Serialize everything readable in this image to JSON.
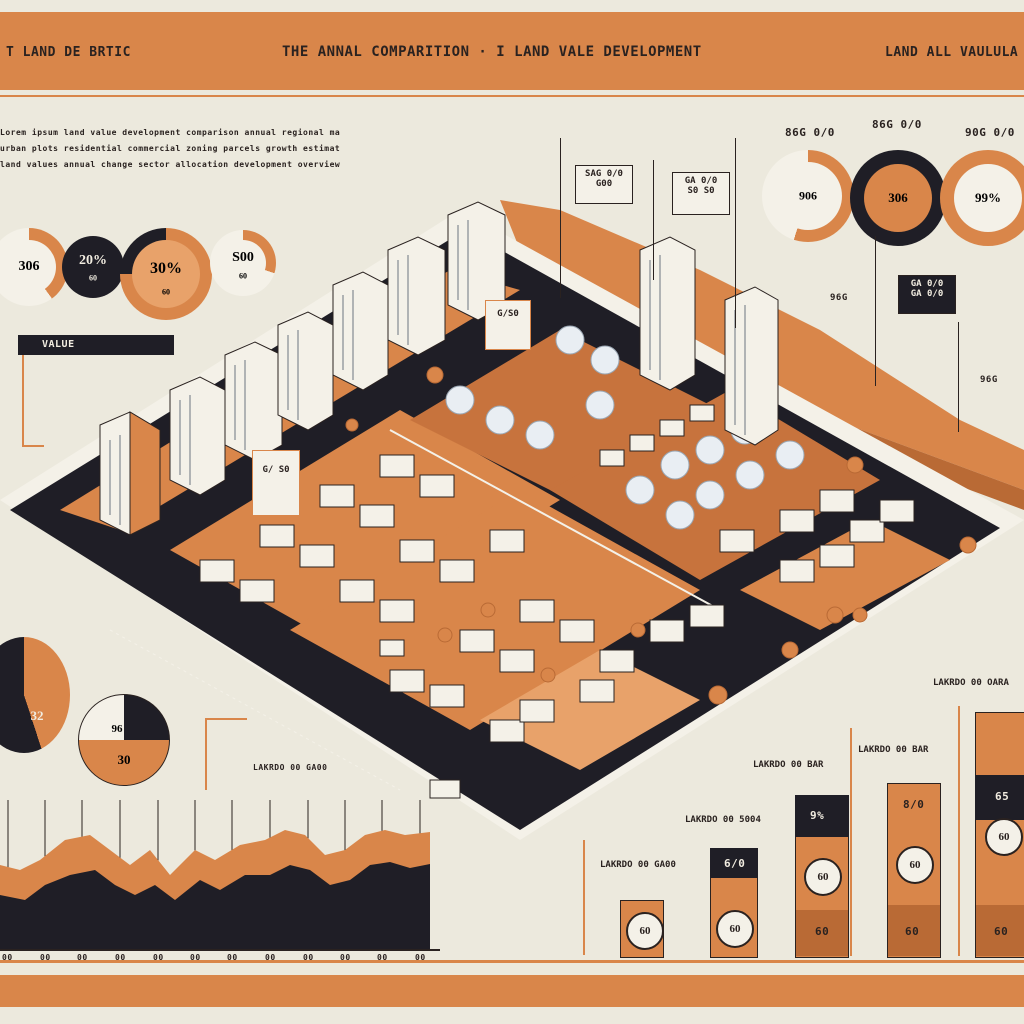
{
  "header": {
    "left_label": "T LAND DE BRTIC",
    "title": "THE  ANNAL COMPARITION · I LAND VALE DEVELOPMENT",
    "right_label": "LAND ALL VAULULA"
  },
  "intro_text": [
    "Lorem ipsum land value development comparison annual regional market index rates",
    "urban plots residential commercial zoning parcels growth estimate figures shown",
    "land values annual change sector allocation development overview data panel"
  ],
  "left_donuts": [
    {
      "value": "306",
      "sub": ""
    },
    {
      "value": "20%",
      "sub": "60"
    },
    {
      "value": "30%",
      "sub": "60"
    },
    {
      "value": "S00",
      "sub": "60"
    }
  ],
  "right_donuts": [
    {
      "caption": "86G 0/0",
      "value": "906"
    },
    {
      "caption": "86G 0/0",
      "value": "306"
    },
    {
      "caption": "90G 0/0",
      "value": "99%"
    }
  ],
  "value_tag": "VALUE",
  "signs": {
    "sign_a": "SAG 0/0\nG00",
    "sign_b": "GA 0/0\nS0 S0",
    "sign_c": "GA 0/0\nGA 0/0",
    "sign_d": "G/S0",
    "sign_e": "G/ S0",
    "right_pct_a": "96G",
    "right_pct_b": "96G"
  },
  "left_pies": [
    {
      "value": "32"
    },
    {
      "value": "96",
      "sub": "30"
    }
  ],
  "bar_chart": {
    "labels": [
      "LAKRDO 00 5004",
      "LAKRDO 00 BAR",
      "LAKRDO 00 BAR",
      "LAKRDO 00 BAR"
    ],
    "top_label": "LAKRDO 00 OARA",
    "left_label": "LAKRDO 00 GA00",
    "values_top": [
      "60",
      "6/0",
      "9%",
      "8/0",
      "65"
    ],
    "values_mid": [
      "",
      "60",
      "60",
      "60",
      "60"
    ],
    "values_bot": [
      "",
      "",
      "60",
      "60",
      "60"
    ]
  },
  "area_chart": {
    "label": "LAKRDO 00 GA00",
    "ticks": [
      "00",
      "00",
      "00",
      "00",
      "00",
      "00",
      "00",
      "00",
      "00",
      "00",
      "00",
      "00"
    ]
  },
  "colors": {
    "orange": "#d9864a",
    "dark": "#1f1e26",
    "cream": "#ece9dd",
    "light_orange": "#e8a26a"
  }
}
